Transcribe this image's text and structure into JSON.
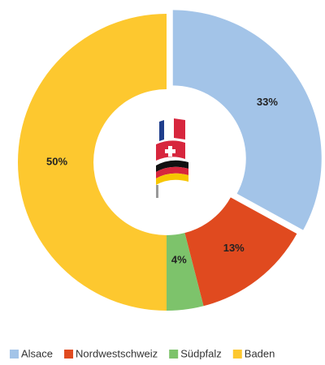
{
  "chart_data": {
    "type": "donut",
    "categories": [
      "Alsace",
      "Nordwestschweiz",
      "Südpfalz",
      "Baden"
    ],
    "series": [
      {
        "name": "Share",
        "values": [
          33,
          13,
          4,
          50
        ],
        "value_labels": [
          "33%",
          "13%",
          "4%",
          "50%"
        ]
      }
    ],
    "colors": [
      "#a3c4e8",
      "#e04a1f",
      "#7dc36b",
      "#fdc82f"
    ]
  }
}
